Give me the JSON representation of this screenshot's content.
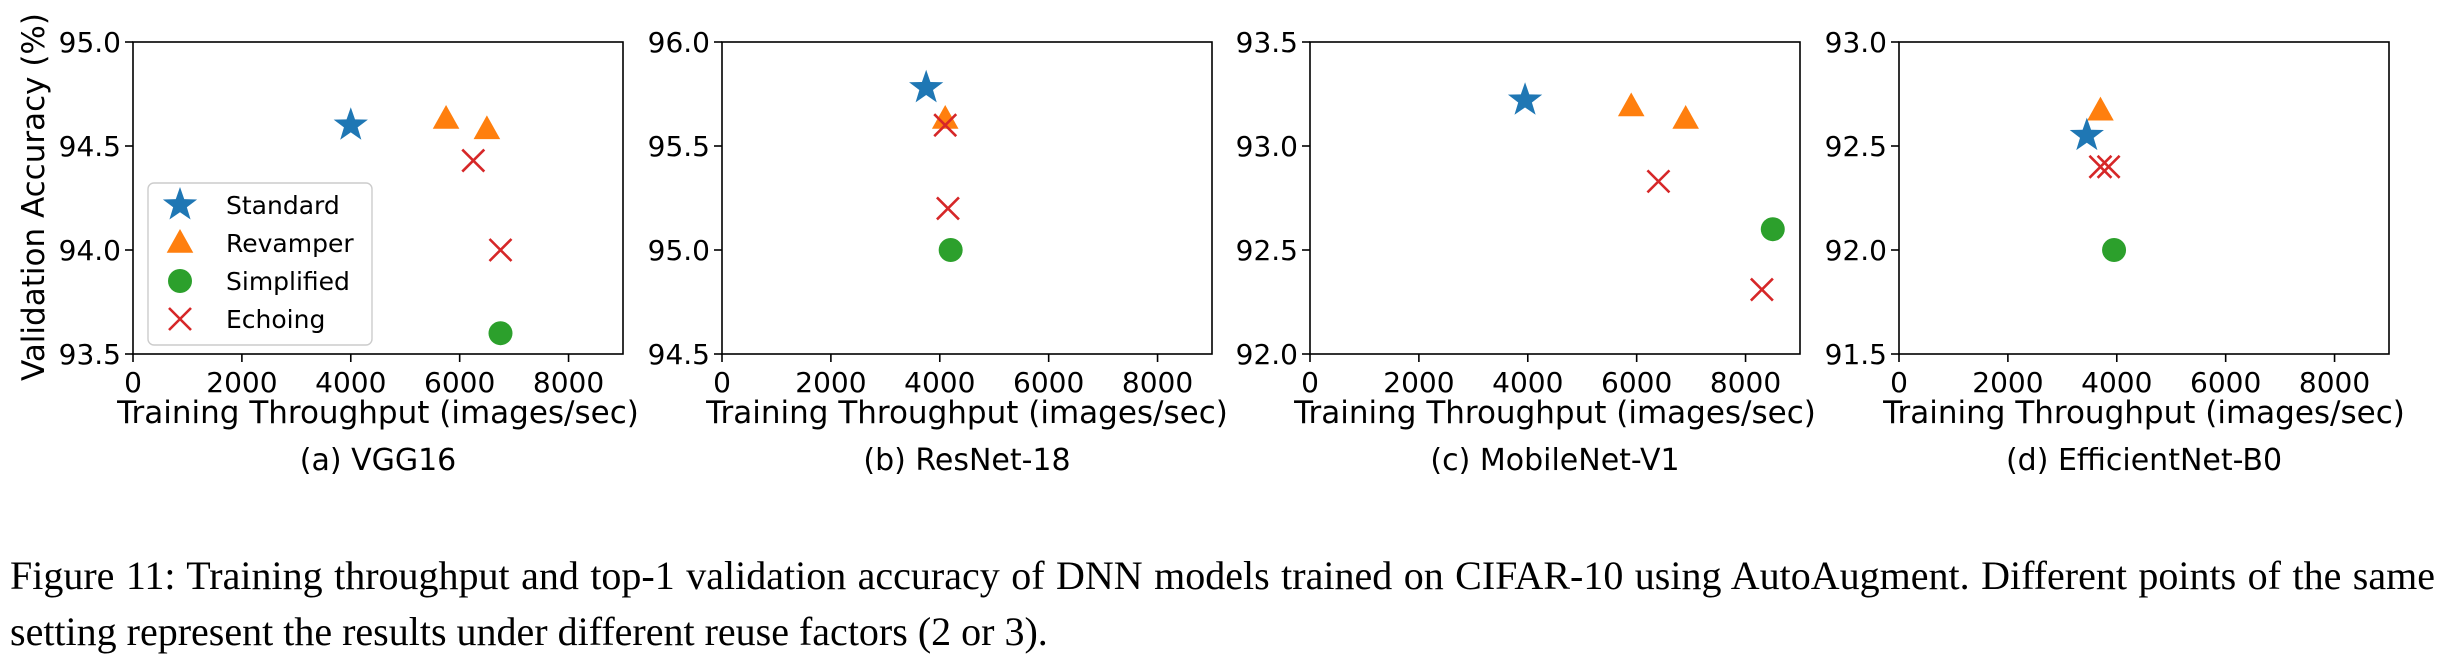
{
  "figure": {
    "ylabel": "Validation Accuracy (%)",
    "caption": "Figure 11: Training throughput and top-1 validation accuracy of DNN models trained on CIFAR-10 using AutoAugment. Different points of the same setting represent the results under different reuse factors (2 or 3)."
  },
  "legend": {
    "placement": "lower-left of panel (a)",
    "entries": [
      {
        "name": "Standard",
        "marker": "star",
        "color": "#1f77b4"
      },
      {
        "name": "Revamper",
        "marker": "triangle",
        "color": "#ff7f0e"
      },
      {
        "name": "Simplified",
        "marker": "circle",
        "color": "#2ca02c"
      },
      {
        "name": "Echoing",
        "marker": "x",
        "color": "#d62728"
      }
    ]
  },
  "chart_data": [
    {
      "type": "scatter",
      "subcaption": "(a) VGG16",
      "xlabel": "Training Throughput (images/sec)",
      "ylabel": "Validation Accuracy (%)",
      "xlim": [
        0,
        9000
      ],
      "ylim": [
        93.5,
        95.0
      ],
      "xticks": [
        "0",
        "2000",
        "4000",
        "6000",
        "8000"
      ],
      "yticks": [
        "93.5",
        "94.0",
        "94.5",
        "95.0"
      ],
      "grid": false,
      "series": [
        {
          "name": "Standard",
          "points": [
            [
              4000,
              94.6
            ]
          ]
        },
        {
          "name": "Revamper",
          "points": [
            [
              5750,
              94.63
            ],
            [
              6500,
              94.58
            ]
          ]
        },
        {
          "name": "Simplified",
          "points": [
            [
              6750,
              93.6
            ]
          ]
        },
        {
          "name": "Echoing",
          "points": [
            [
              6250,
              94.43
            ],
            [
              6750,
              94.0
            ]
          ]
        }
      ]
    },
    {
      "type": "scatter",
      "subcaption": "(b) ResNet-18",
      "xlabel": "Training Throughput (images/sec)",
      "xlim": [
        0,
        9000
      ],
      "ylim": [
        94.5,
        96.0
      ],
      "xticks": [
        "0",
        "2000",
        "4000",
        "6000",
        "8000"
      ],
      "yticks": [
        "94.5",
        "95.0",
        "95.5",
        "96.0"
      ],
      "grid": false,
      "series": [
        {
          "name": "Standard",
          "points": [
            [
              3750,
              95.78
            ]
          ]
        },
        {
          "name": "Revamper",
          "points": [
            [
              4100,
              95.63
            ]
          ]
        },
        {
          "name": "Simplified",
          "points": [
            [
              4200,
              95.0
            ]
          ]
        },
        {
          "name": "Echoing",
          "points": [
            [
              4100,
              95.6
            ],
            [
              4150,
              95.2
            ]
          ]
        }
      ]
    },
    {
      "type": "scatter",
      "subcaption": "(c) MobileNet-V1",
      "xlabel": "Training Throughput (images/sec)",
      "xlim": [
        0,
        9000
      ],
      "ylim": [
        92.0,
        93.5
      ],
      "xticks": [
        "0",
        "2000",
        "4000",
        "6000",
        "8000"
      ],
      "yticks": [
        "92.0",
        "92.5",
        "93.0",
        "93.5"
      ],
      "grid": false,
      "series": [
        {
          "name": "Standard",
          "points": [
            [
              3950,
              93.22
            ]
          ]
        },
        {
          "name": "Revamper",
          "points": [
            [
              5900,
              93.19
            ],
            [
              6900,
              93.13
            ]
          ]
        },
        {
          "name": "Simplified",
          "points": [
            [
              8500,
              92.6
            ]
          ]
        },
        {
          "name": "Echoing",
          "points": [
            [
              6400,
              92.83
            ],
            [
              8300,
              92.31
            ]
          ]
        }
      ]
    },
    {
      "type": "scatter",
      "subcaption": "(d) EfficientNet-B0",
      "xlabel": "Training Throughput (images/sec)",
      "xlim": [
        0,
        9000
      ],
      "ylim": [
        91.5,
        93.0
      ],
      "xticks": [
        "0",
        "2000",
        "4000",
        "6000",
        "8000"
      ],
      "yticks": [
        "91.5",
        "92.0",
        "92.5",
        "93.0"
      ],
      "grid": false,
      "series": [
        {
          "name": "Standard",
          "points": [
            [
              3450,
              92.55
            ]
          ]
        },
        {
          "name": "Revamper",
          "points": [
            [
              3700,
              92.67
            ]
          ]
        },
        {
          "name": "Simplified",
          "points": [
            [
              3950,
              92.0
            ]
          ]
        },
        {
          "name": "Echoing",
          "points": [
            [
              3700,
              92.4
            ],
            [
              3850,
              92.4
            ]
          ]
        }
      ]
    }
  ]
}
